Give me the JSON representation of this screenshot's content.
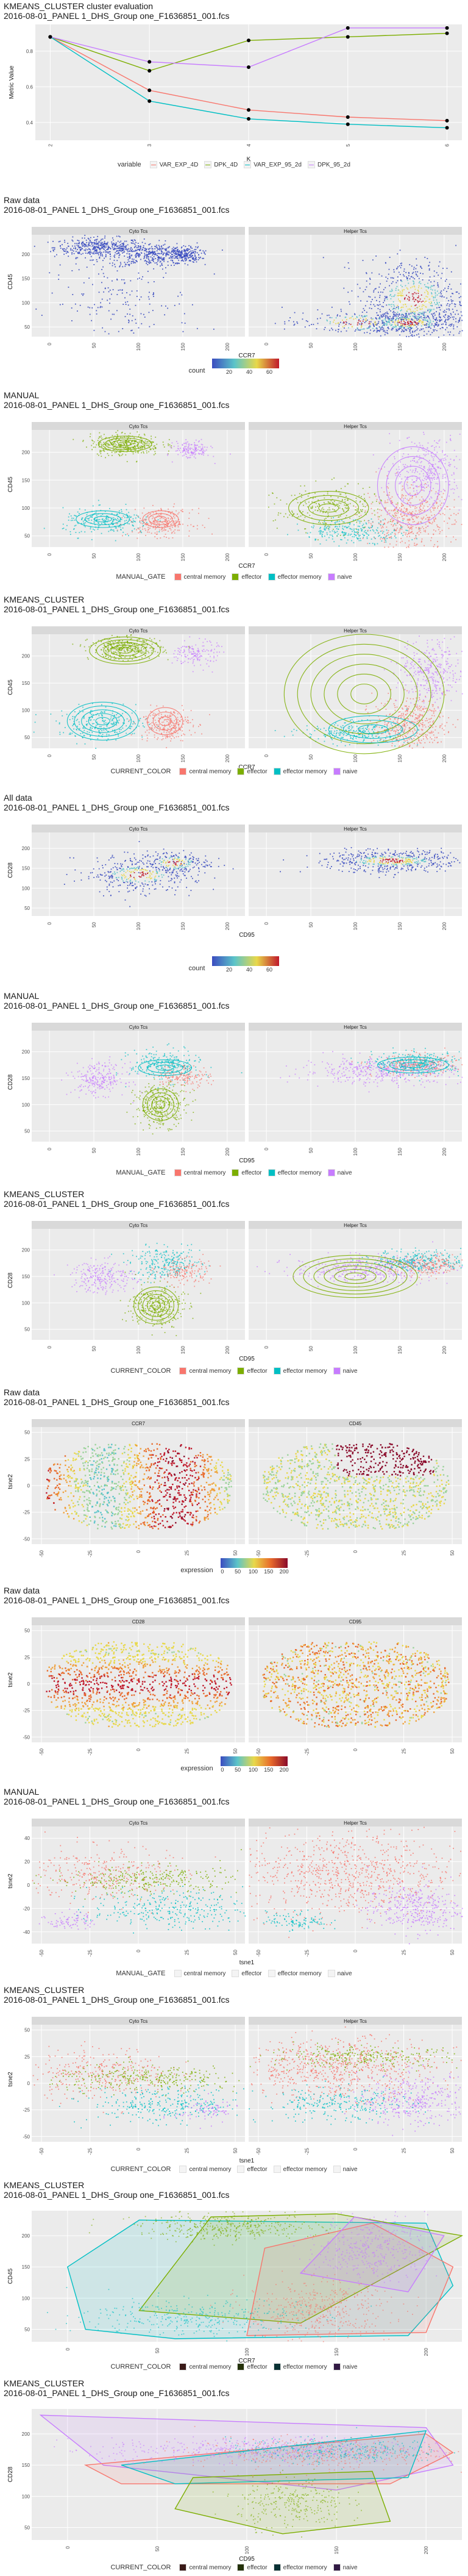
{
  "palette": {
    "central_memory": "#F8766D",
    "effector": "#7CAE00",
    "effector_memory": "#00BFC4",
    "naive": "#C77CFF",
    "density_low": "#3b4cc0",
    "density_mid": "#e8d84a",
    "density_high": "#c0192b",
    "panel_bg": "#ebebeb",
    "strip_bg": "#d9d9d9"
  },
  "sections": {
    "s1": {
      "title_line1": "KMEANS_CLUSTER cluster evaluation",
      "title_line2": "2016-08-01_PANEL 1_DHS_Group one_F1636851_001.fcs"
    },
    "s2": {
      "title_line1": "Raw data",
      "title_line2": "2016-08-01_PANEL 1_DHS_Group one_F1636851_001.fcs"
    },
    "s3": {
      "title_line1": "MANUAL",
      "title_line2": "2016-08-01_PANEL 1_DHS_Group one_F1636851_001.fcs"
    },
    "s4": {
      "title_line1": "KMEANS_CLUSTER",
      "title_line2": "2016-08-01_PANEL 1_DHS_Group one_F1636851_001.fcs"
    },
    "s5": {
      "title_line1": "All data",
      "title_line2": "2016-08-01_PANEL 1_DHS_Group one_F1636851_001.fcs"
    },
    "s6": {
      "title_line1": "MANUAL",
      "title_line2": "2016-08-01_PANEL 1_DHS_Group one_F1636851_001.fcs"
    },
    "s7": {
      "title_line1": "KMEANS_CLUSTER",
      "title_line2": "2016-08-01_PANEL 1_DHS_Group one_F1636851_001.fcs"
    },
    "s8": {
      "title_line1": "Raw data",
      "title_line2": "2016-08-01_PANEL 1_DHS_Group one_F1636851_001.fcs"
    },
    "s9": {
      "title_line1": "Raw data",
      "title_line2": "2016-08-01_PANEL 1_DHS_Group one_F1636851_001.fcs"
    },
    "s10": {
      "title_line1": "MANUAL",
      "title_line2": "2016-08-01_PANEL 1_DHS_Group one_F1636851_001.fcs"
    },
    "s11": {
      "title_line1": "KMEANS_CLUSTER",
      "title_line2": "2016-08-01_PANEL 1_DHS_Group one_F1636851_001.fcs"
    },
    "s12": {
      "title_line1": "KMEANS_CLUSTER",
      "title_line2": "2016-08-01_PANEL 1_DHS_Group one_F1636851_001.fcs"
    },
    "s13": {
      "title_line1": "KMEANS_CLUSTER",
      "title_line2": "2016-08-01_PANEL 1_DHS_Group one_F1636851_001.fcs"
    }
  },
  "legends": {
    "variable_title": "variable",
    "variable_items": [
      "VAR_EXP_4D",
      "DPK_4D",
      "VAR_EXP_95_2d",
      "DPK_95_2d"
    ],
    "count_title": "count",
    "count_ticks_a": [
      "20",
      "40",
      "60"
    ],
    "count_ticks_b": [
      "20",
      "40",
      "60"
    ],
    "expression_title": "expression",
    "expression_ticks": [
      "0",
      "50",
      "100",
      "150",
      "200"
    ],
    "manual_gate_title": "MANUAL_GATE",
    "current_color_title": "CURRENT_COLOR",
    "cluster_items": [
      "central memory",
      "effector",
      "effector memory",
      "naive"
    ]
  },
  "chart_data": [
    {
      "type": "line",
      "title": "KMEANS_CLUSTER cluster evaluation",
      "xlabel": "K",
      "ylabel": "Metric Value",
      "x": [
        2,
        3,
        4,
        5,
        6
      ],
      "x_ticks": [
        "2",
        "3",
        "4",
        "5",
        "6"
      ],
      "y_ticks": [
        "0.4",
        "0.6",
        "0.8"
      ],
      "ylim": [
        0.3,
        0.95
      ],
      "grid": true,
      "legend": "bottom",
      "series": [
        {
          "name": "VAR_EXP_4D",
          "values": [
            0.88,
            0.58,
            0.47,
            0.43,
            0.41
          ]
        },
        {
          "name": "DPK_4D",
          "values": [
            0.88,
            0.69,
            0.86,
            0.88,
            0.9
          ]
        },
        {
          "name": "VAR_EXP_95_2d",
          "values": [
            0.88,
            0.52,
            0.42,
            0.39,
            0.37
          ]
        },
        {
          "name": "DPK_95_2d",
          "values": [
            0.88,
            0.74,
            0.71,
            0.93,
            0.93
          ]
        }
      ]
    },
    {
      "type": "scatter",
      "title": "Raw data",
      "xlabel": "CCR7",
      "ylabel": "CD45",
      "facets": [
        "Cyto Tcs",
        "Helper Tcs"
      ],
      "x_ticks": [
        "0",
        "50",
        "100",
        "150",
        "200"
      ],
      "y_ticks": [
        "50",
        "100",
        "150",
        "200"
      ],
      "xlim": [
        -20,
        220
      ],
      "ylim": [
        30,
        240
      ],
      "color": "density count",
      "legend": "bottom"
    },
    {
      "type": "scatter",
      "title": "MANUAL",
      "xlabel": "CCR7",
      "ylabel": "CD45",
      "facets": [
        "Cyto Tcs",
        "Helper Tcs"
      ],
      "x_ticks": [
        "0",
        "50",
        "100",
        "150",
        "200"
      ],
      "y_ticks": [
        "50",
        "100",
        "150",
        "200"
      ],
      "xlim": [
        -20,
        220
      ],
      "ylim": [
        30,
        240
      ],
      "color": "MANUAL_GATE",
      "legend": "bottom"
    },
    {
      "type": "scatter",
      "title": "KMEANS_CLUSTER",
      "xlabel": "CCR7",
      "ylabel": "CD45",
      "facets": [
        "Cyto Tcs",
        "Helper Tcs"
      ],
      "x_ticks": [
        "0",
        "50",
        "100",
        "150",
        "200"
      ],
      "y_ticks": [
        "50",
        "100",
        "150",
        "200"
      ],
      "xlim": [
        -20,
        220
      ],
      "ylim": [
        30,
        240
      ],
      "color": "CURRENT_COLOR",
      "legend": "bottom"
    },
    {
      "type": "scatter",
      "title": "All data",
      "xlabel": "CD95",
      "ylabel": "CD28",
      "facets": [
        "Cyto Tcs",
        "Helper Tcs"
      ],
      "x_ticks": [
        "0",
        "50",
        "100",
        "150",
        "200"
      ],
      "y_ticks": [
        "50",
        "100",
        "150",
        "200"
      ],
      "xlim": [
        -20,
        220
      ],
      "ylim": [
        30,
        240
      ],
      "color": "density count",
      "legend": "bottom"
    },
    {
      "type": "scatter",
      "title": "MANUAL",
      "xlabel": "CD95",
      "ylabel": "CD28",
      "facets": [
        "Cyto Tcs",
        "Helper Tcs"
      ],
      "x_ticks": [
        "0",
        "50",
        "100",
        "150",
        "200"
      ],
      "y_ticks": [
        "50",
        "100",
        "150",
        "200"
      ],
      "xlim": [
        -20,
        220
      ],
      "ylim": [
        30,
        240
      ],
      "color": "MANUAL_GATE",
      "legend": "bottom"
    },
    {
      "type": "scatter",
      "title": "KMEANS_CLUSTER",
      "xlabel": "CD95",
      "ylabel": "CD28",
      "facets": [
        "Cyto Tcs",
        "Helper Tcs"
      ],
      "x_ticks": [
        "0",
        "50",
        "100",
        "150",
        "200"
      ],
      "y_ticks": [
        "50",
        "100",
        "150",
        "200"
      ],
      "xlim": [
        -20,
        220
      ],
      "ylim": [
        30,
        240
      ],
      "color": "CURRENT_COLOR",
      "legend": "bottom"
    },
    {
      "type": "scatter",
      "title": "Raw data",
      "xlabel": "tsne1",
      "ylabel": "tsne2",
      "facets": [
        "CCR7",
        "CD45"
      ],
      "x_ticks": [
        "-50",
        "-25",
        "0",
        "25",
        "50"
      ],
      "y_ticks": [
        "-50",
        "-25",
        "0",
        "25",
        "50"
      ],
      "xlim": [
        -55,
        55
      ],
      "ylim": [
        -55,
        55
      ],
      "color": "expression",
      "legend": "bottom"
    },
    {
      "type": "scatter",
      "title": "Raw data",
      "xlabel": "tsne1",
      "ylabel": "tsne2",
      "facets": [
        "CD28",
        "CD95"
      ],
      "x_ticks": [
        "-50",
        "-25",
        "0",
        "25",
        "50"
      ],
      "y_ticks": [
        "-50",
        "-25",
        "0",
        "25",
        "50"
      ],
      "xlim": [
        -55,
        55
      ],
      "ylim": [
        -55,
        55
      ],
      "color": "expression",
      "legend": "bottom"
    },
    {
      "type": "scatter",
      "title": "MANUAL",
      "xlabel": "tsne1",
      "ylabel": "tsne2",
      "facets": [
        "Cyto Tcs",
        "Helper Tcs"
      ],
      "x_ticks": [
        "-50",
        "-25",
        "0",
        "25",
        "50"
      ],
      "y_ticks": [
        "-40",
        "-20",
        "0",
        "20",
        "40"
      ],
      "xlim": [
        -55,
        55
      ],
      "ylim": [
        -50,
        50
      ],
      "color": "MANUAL_GATE",
      "legend": "bottom"
    },
    {
      "type": "scatter",
      "title": "KMEANS_CLUSTER",
      "xlabel": "tsne1",
      "ylabel": "tsne2",
      "facets": [
        "Cyto Tcs",
        "Helper Tcs"
      ],
      "x_ticks": [
        "-50",
        "-25",
        "0",
        "25",
        "50"
      ],
      "y_ticks": [
        "-50",
        "-25",
        "0",
        "25",
        "50"
      ],
      "xlim": [
        -55,
        55
      ],
      "ylim": [
        -55,
        55
      ],
      "color": "CURRENT_COLOR",
      "legend": "bottom"
    },
    {
      "type": "scatter",
      "title": "KMEANS_CLUSTER",
      "xlabel": "CCR7",
      "ylabel": "CD45",
      "x_ticks": [
        "0",
        "50",
        "100",
        "150",
        "200"
      ],
      "y_ticks": [
        "50",
        "100",
        "150",
        "200"
      ],
      "xlim": [
        -20,
        220
      ],
      "ylim": [
        30,
        240
      ],
      "color": "CURRENT_COLOR",
      "legend": "bottom"
    },
    {
      "type": "scatter",
      "title": "KMEANS_CLUSTER",
      "xlabel": "CD95",
      "ylabel": "CD28",
      "x_ticks": [
        "0",
        "50",
        "100",
        "150",
        "200"
      ],
      "y_ticks": [
        "50",
        "100",
        "150",
        "200"
      ],
      "xlim": [
        -20,
        220
      ],
      "ylim": [
        30,
        240
      ],
      "color": "CURRENT_COLOR",
      "legend": "bottom"
    }
  ]
}
